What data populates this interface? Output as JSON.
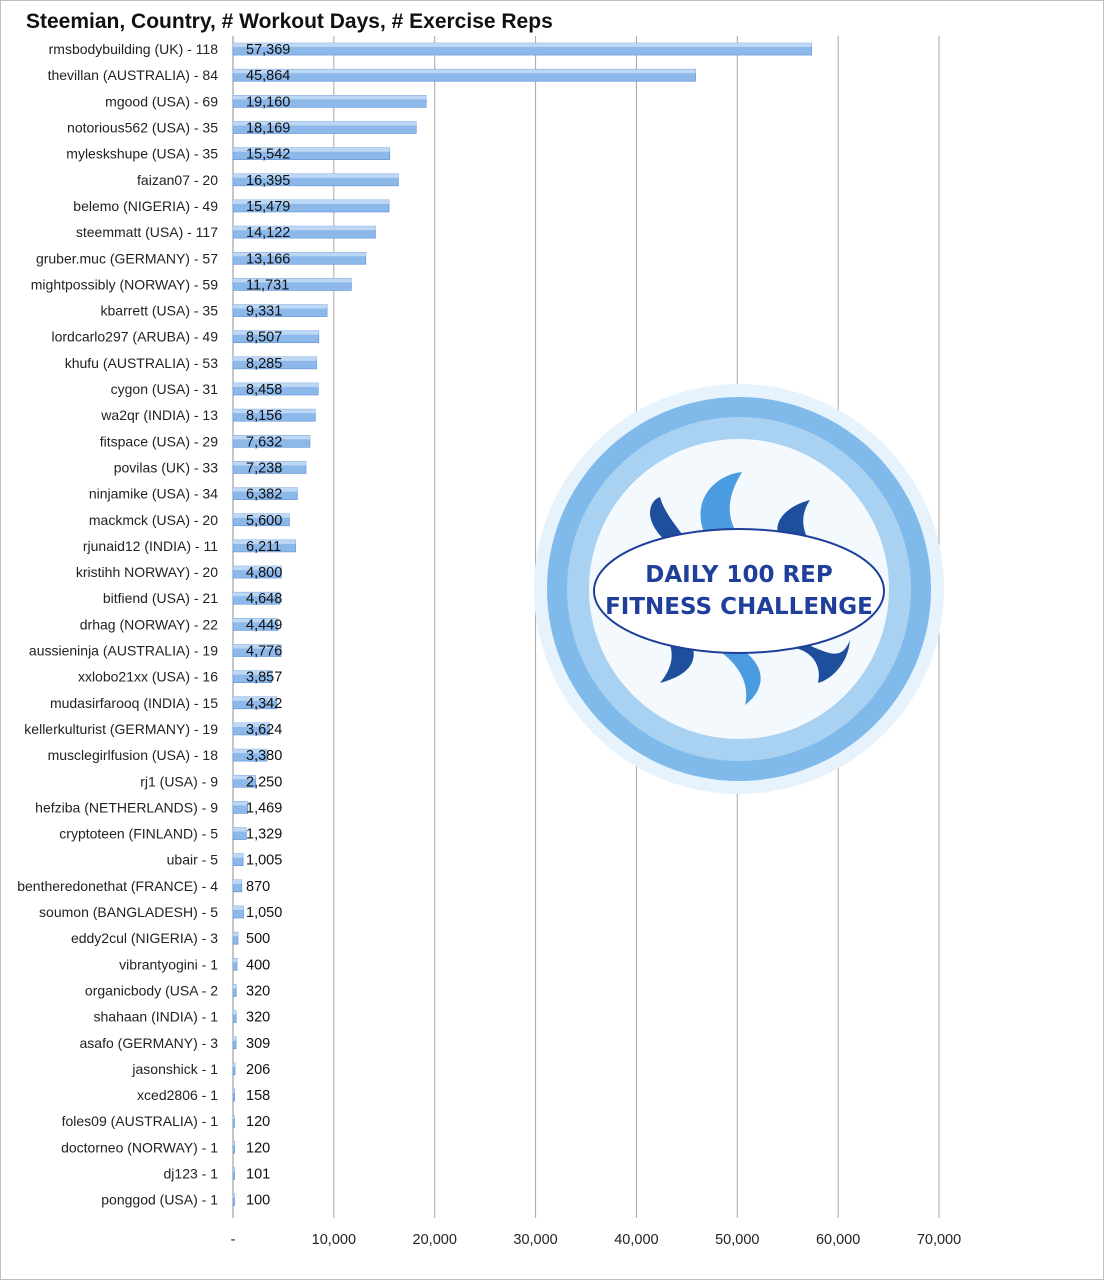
{
  "chart_data": {
    "type": "bar",
    "orientation": "horizontal",
    "title": "Steemian, Country, # Workout Days, # Exercise Reps",
    "categories": [
      "rmsbodybuilding (UK) - 118",
      "thevillan (AUSTRALIA) - 84",
      "mgood (USA) - 69",
      "notorious562 (USA) - 35",
      "myleskshupe (USA) - 35",
      "faizan07 - 20",
      "belemo (NIGERIA) - 49",
      "steemmatt (USA) - 117",
      "gruber.muc (GERMANY) - 57",
      "mightpossibly (NORWAY) - 59",
      "kbarrett (USA) - 35",
      "lordcarlo297 (ARUBA) - 49",
      "khufu (AUSTRALIA) - 53",
      "cygon (USA) - 31",
      "wa2qr (INDIA) - 13",
      "fitspace (USA) - 29",
      "povilas (UK) - 33",
      "ninjamike (USA) - 34",
      "mackmck (USA) - 20",
      "rjunaid12 (INDIA) - 11",
      "kristihh NORWAY) - 20",
      "bitfiend (USA) - 21",
      "drhag (NORWAY) - 22",
      "aussieninja (AUSTRALIA) - 19",
      "xxlobo21xx (USA) - 16",
      "mudasirfarooq (INDIA) - 15",
      "kellerkulturist (GERMANY) - 19",
      "musclegirlfusion (USA) - 18",
      "rj1 (USA) - 9",
      "hefziba (NETHERLANDS) - 9",
      "cryptoteen (FINLAND) - 5",
      "ubair - 5",
      "bentheredonethat (FRANCE) - 4",
      "soumon (BANGLADESH) - 5",
      "eddy2cul (NIGERIA) - 3",
      "vibrantyogini - 1",
      "organicbody (USA - 2",
      "shahaan (INDIA) - 1",
      "asafo (GERMANY) - 3",
      "jasonshick  - 1",
      "xced2806 - 1",
      "foles09 (AUSTRALIA) - 1",
      "doctorneo (NORWAY) - 1",
      "dj123 - 1",
      "ponggod (USA) - 1"
    ],
    "values": [
      57369,
      45864,
      19160,
      18169,
      15542,
      16395,
      15479,
      14122,
      13166,
      11731,
      9331,
      8507,
      8285,
      8458,
      8156,
      7632,
      7238,
      6382,
      5600,
      6211,
      4800,
      4648,
      4449,
      4776,
      3857,
      4342,
      3624,
      3380,
      2250,
      1469,
      1329,
      1005,
      870,
      1050,
      500,
      400,
      320,
      320,
      309,
      206,
      158,
      120,
      120,
      101,
      100
    ],
    "value_labels": [
      "57,369",
      "45,864",
      "19,160",
      "18,169",
      "15,542",
      "16,395",
      "15,479",
      "14,122",
      "13,166",
      "11,731",
      "9,331",
      "8,507",
      "8,285",
      "8,458",
      "8,156",
      "7,632",
      "7,238",
      "6,382",
      "5,600",
      "6,211",
      "4,800",
      "4,648",
      "4,449",
      "4,776",
      "3,857",
      "4,342",
      "3,624",
      "3,380",
      "2,250",
      "1,469",
      "1,329",
      "1,005",
      "870",
      "1,050",
      "500",
      "400",
      "320",
      "320",
      "309",
      "206",
      "158",
      "120",
      "120",
      "101",
      "100"
    ],
    "xlim": [
      0,
      70000
    ],
    "x_ticks": [
      0,
      10000,
      20000,
      30000,
      40000,
      50000,
      60000,
      70000
    ],
    "x_tick_labels": [
      "-",
      "10,000",
      "20,000",
      "30,000",
      "40,000",
      "50,000",
      "60,000",
      "70,000"
    ],
    "xlabel": "",
    "ylabel": "",
    "grid": true,
    "legend": "none",
    "bar_color": "#8db8ea",
    "bar_edge_color": "#5b8fd6",
    "grid_color": "#a6a6a6"
  },
  "badge": {
    "line1": "DAILY 100 REP",
    "line2": "FITNESS CHALLENGE",
    "ring_color": "#6aaee6",
    "text_color": "#1f3f9a",
    "flame_dark": "#1e4f9c",
    "flame_light": "#4a9be0"
  }
}
